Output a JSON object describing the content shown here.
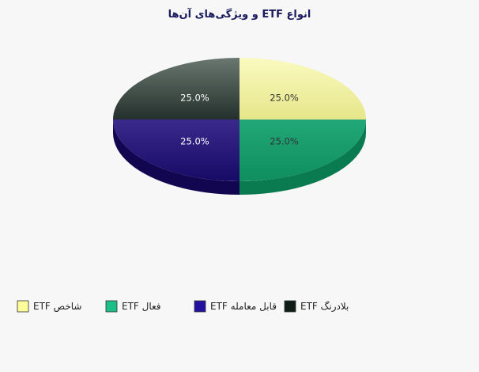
{
  "chart_data": {
    "type": "pie",
    "title": "انواع ETF و ویژگی‌های آن‌ها",
    "slices": [
      {
        "name": "ETF شاخص",
        "value": 25.0,
        "label": "25.0%",
        "color": "#f7f7a0"
      },
      {
        "name": "ETF فعال",
        "value": 25.0,
        "label": "25.0%",
        "color": "#1aa070"
      },
      {
        "name": "ETF قابل معامله",
        "value": 25.0,
        "label": "25.0%",
        "color": "#2c1a8a"
      },
      {
        "name": "ETF بلادرنگ",
        "value": 25.0,
        "label": "25.0%",
        "color": "#3c4a44"
      }
    ],
    "legend_position": "bottom"
  }
}
